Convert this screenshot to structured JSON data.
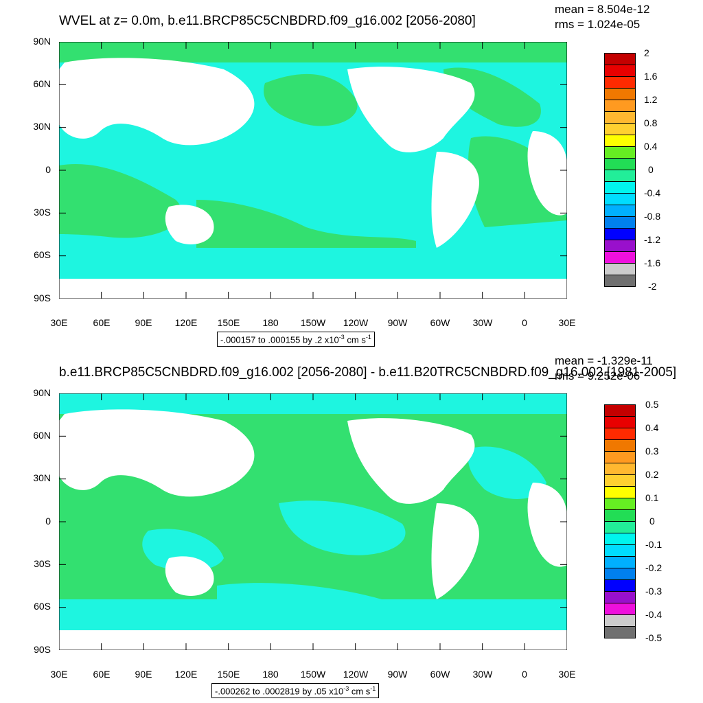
{
  "panels": [
    {
      "title": "WVEL at z=   0.0m, b.e11.BRCP85C5CNBDRD.f09_g16.002 [2056-2080]",
      "mean": "mean = 8.504e-12",
      "rms": "rms = 1.024e-05",
      "lat_labels": [
        "90N",
        "60N",
        "30N",
        "0",
        "30S",
        "60S",
        "90S"
      ],
      "lon_labels": [
        "30E",
        "60E",
        "90E",
        "120E",
        "150E",
        "180",
        "150W",
        "120W",
        "90W",
        "60W",
        "30W",
        "0",
        "30E"
      ],
      "colorbar_labels": [
        "2",
        "1.6",
        "1.2",
        "0.8",
        "0.4",
        "0",
        "-0.4",
        "-0.8",
        "-1.2",
        "-1.6",
        "-2"
      ],
      "info_main": "-.000157 to .000155 by .2 x10",
      "info_exp": "-3",
      "info_unit": " cm s",
      "info_unit_exp": "-1"
    },
    {
      "title": "b.e11.BRCP85C5CNBDRD.f09_g16.002 [2056-2080] - b.e11.B20TRC5CNBDRD.f09_g16.002 [1981-2005]",
      "mean": "mean = -1.329e-11",
      "rms": "rms = 9.252e-06",
      "lat_labels": [
        "90N",
        "60N",
        "30N",
        "0",
        "30S",
        "60S",
        "90S"
      ],
      "lon_labels": [
        "30E",
        "60E",
        "90E",
        "120E",
        "150E",
        "180",
        "150W",
        "120W",
        "90W",
        "60W",
        "30W",
        "0",
        "30E"
      ],
      "colorbar_labels": [
        "0.5",
        "0.4",
        "0.3",
        "0.2",
        "0.1",
        "0",
        "-0.1",
        "-0.2",
        "-0.3",
        "-0.4",
        "-0.5"
      ],
      "info_main": "-.000262 to .0002819 by .05 x10",
      "info_exp": "-3",
      "info_unit": " cm s",
      "info_unit_exp": "-1"
    }
  ],
  "colors": {
    "green": "#33e070",
    "cyan": "#1ef5e0",
    "land": "#ffffff",
    "colorbar": [
      "#c40000",
      "#e80000",
      "#ff2a00",
      "#f07800",
      "#ff9a20",
      "#ffb830",
      "#ffd030",
      "#ffff00",
      "#66ee22",
      "#22dd55",
      "#22ee99",
      "#00f5ee",
      "#00ddff",
      "#00b0ff",
      "#0080ee",
      "#0000ff",
      "#9910cc",
      "#ee10dd",
      "#cccccc",
      "#707070"
    ]
  }
}
